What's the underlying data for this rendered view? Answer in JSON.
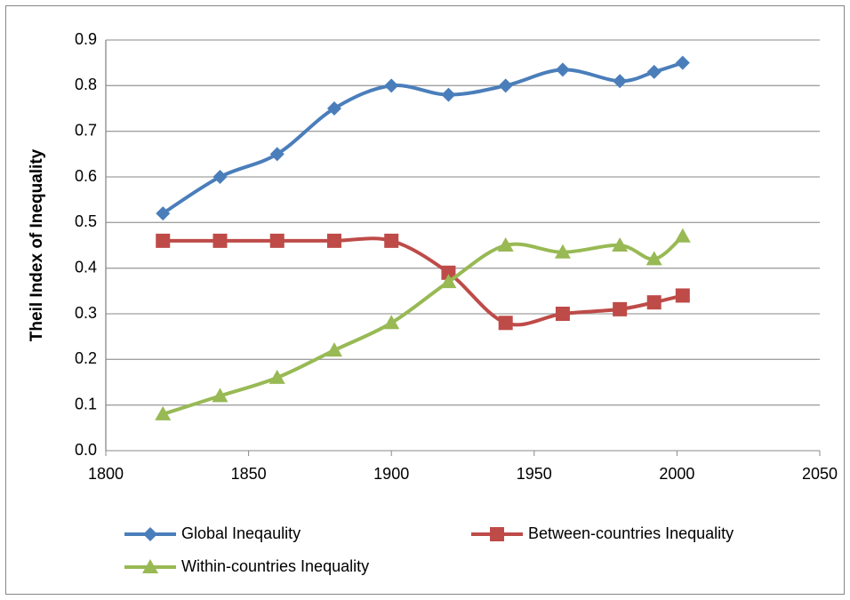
{
  "chart_data": {
    "type": "line",
    "ylabel": "Theil Index of Inequality",
    "x": [
      1820,
      1840,
      1860,
      1880,
      1900,
      1920,
      1940,
      1960,
      1980,
      1992,
      2002
    ],
    "series": [
      {
        "name": "Global Ineqaulity",
        "color": "#4a7ebb",
        "marker": "diamond",
        "values": [
          0.52,
          0.6,
          0.65,
          0.75,
          0.8,
          0.78,
          0.8,
          0.835,
          0.81,
          0.83,
          0.85
        ]
      },
      {
        "name": "Between-countries Inequality",
        "color": "#be4b48",
        "marker": "square",
        "values": [
          0.46,
          0.46,
          0.46,
          0.46,
          0.46,
          0.39,
          0.28,
          0.3,
          0.31,
          0.325,
          0.34
        ]
      },
      {
        "name": "Within-countries Inequality",
        "color": "#98b954",
        "marker": "triangle",
        "values": [
          0.08,
          0.12,
          0.16,
          0.22,
          0.28,
          0.37,
          0.45,
          0.435,
          0.45,
          0.42,
          0.47
        ]
      }
    ],
    "xlim": [
      1800,
      2050
    ],
    "xticks": [
      1800,
      1850,
      1900,
      1950,
      2000,
      2050
    ],
    "ylim": [
      0,
      0.9
    ],
    "yticks": [
      {
        "value": 0,
        "label": "0.0"
      },
      0.1,
      0.2,
      0.3,
      0.4,
      0.5,
      0.6,
      0.7,
      0.8,
      0.9
    ],
    "grid": true,
    "smooth": true,
    "legend": "bottom"
  }
}
